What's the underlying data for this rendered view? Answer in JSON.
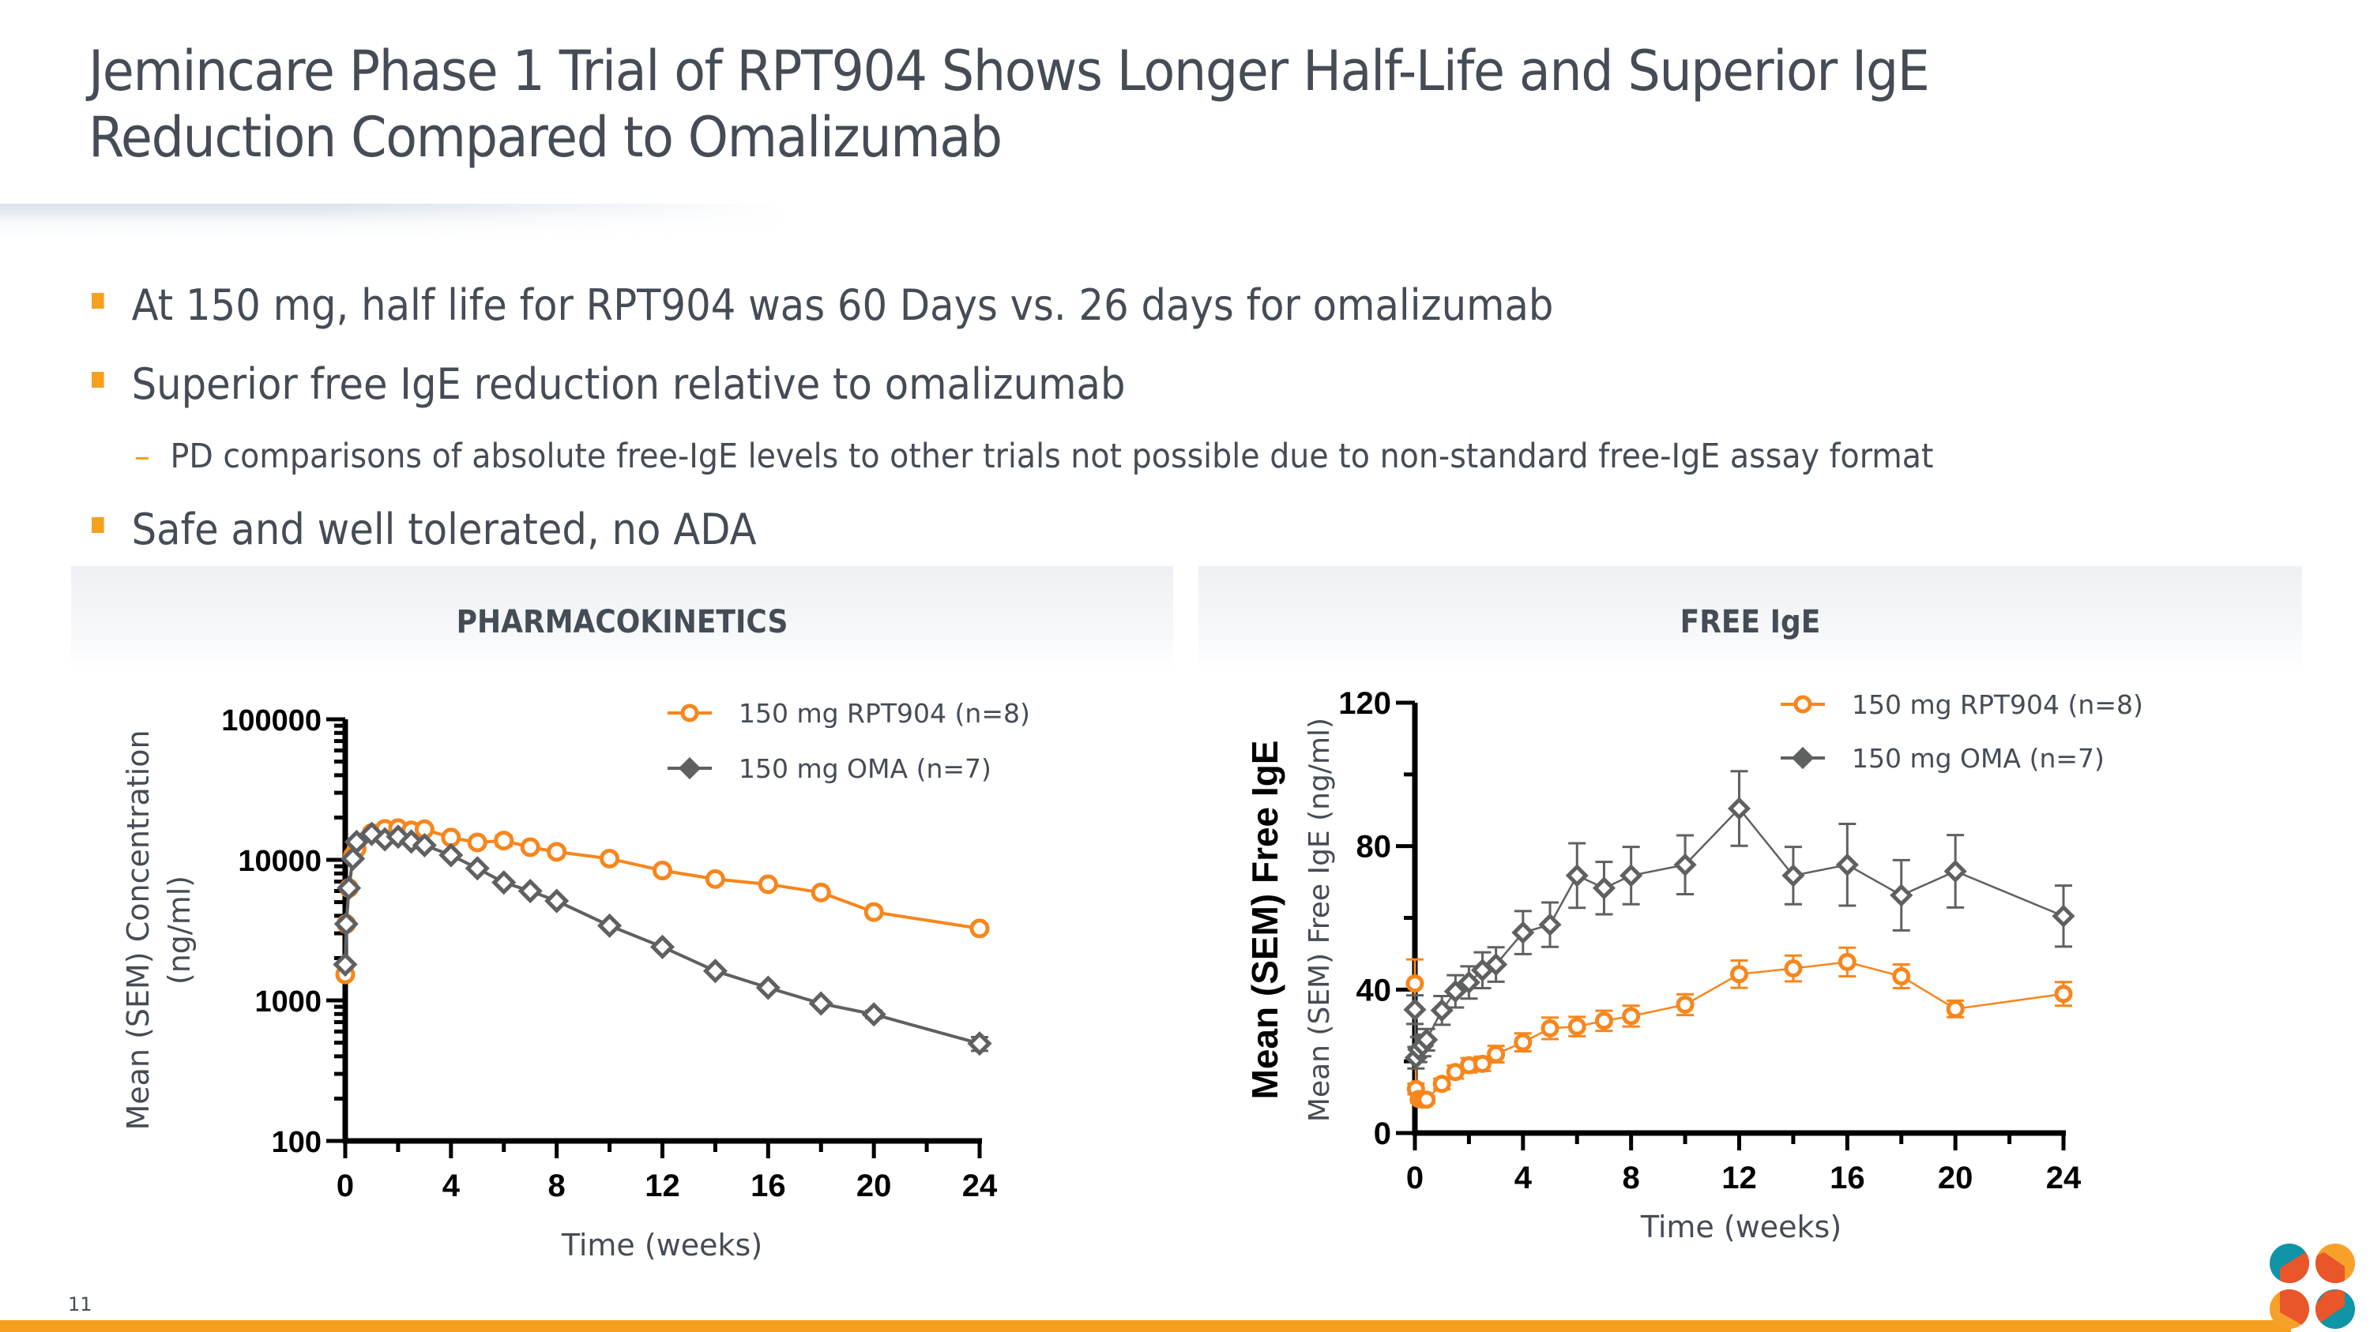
{
  "slide": {
    "title_line1": "Jemincare Phase 1 Trial of RPT904 Shows Longer Half-Life and Superior IgE",
    "title_line2": "Reduction Compared to Omalizumab",
    "page_number": "11",
    "colors": {
      "accent_orange": "#f5a01f",
      "series_rpt904": "#f7861c",
      "series_oma": "#5f6062",
      "text": "#454c55",
      "logo_teal": "#0f94a8",
      "logo_red": "#e8562a",
      "logo_orange": "#f7a02a"
    }
  },
  "bullets": [
    {
      "level": 1,
      "text": "At 150 mg, half life for RPT904 was 60 Days vs. 26 days for omalizumab"
    },
    {
      "level": 1,
      "text": "Superior free IgE reduction relative to omalizumab"
    },
    {
      "level": 2,
      "text": "PD comparisons of absolute free-IgE levels to other trials not possible due to non-standard free-IgE assay format"
    },
    {
      "level": 1,
      "text": "Safe and well tolerated, no ADA"
    }
  ],
  "panels": {
    "left_title": "PHARMACOKINETICS",
    "right_title": "FREE IgE"
  },
  "chart_data": [
    {
      "type": "line",
      "title": "PHARMACOKINETICS",
      "xlabel": "Time (weeks)",
      "ylabel": "Mean (SEM) Concentration (ng/ml)",
      "yscale": "log",
      "xlim": [
        0,
        24
      ],
      "ylim": [
        100,
        100000
      ],
      "xticks": [
        0,
        4,
        8,
        12,
        16,
        20,
        24
      ],
      "xtick_labels": [
        "0",
        "4",
        "8",
        "12",
        "16",
        "20",
        "24"
      ],
      "yticks": [
        100,
        1000,
        10000,
        100000
      ],
      "ytick_labels": [
        "100",
        "1000",
        "10000",
        "100000"
      ],
      "grid": false,
      "legend_position": "top-right",
      "series": [
        {
          "name": "150 mg RPT904 (n=8)",
          "marker": "circle-open",
          "color": "#f7861c",
          "x": [
            0,
            0.04,
            0.14,
            0.29,
            0.43,
            1,
            1.5,
            2,
            2.5,
            3,
            4,
            5,
            6,
            7,
            8,
            10,
            12,
            14,
            16,
            18,
            20,
            24
          ],
          "y": [
            1530,
            3500,
            6300,
            10700,
            12000,
            15500,
            16600,
            16800,
            16200,
            16500,
            14400,
            13300,
            13700,
            12300,
            11400,
            10200,
            8400,
            7300,
            6700,
            5860,
            4250,
            3250
          ],
          "sem": [
            0,
            0,
            0,
            0,
            0,
            0,
            0,
            0,
            0,
            0,
            0,
            0,
            1200,
            0,
            0,
            0,
            0,
            0,
            0,
            0,
            0,
            0
          ]
        },
        {
          "name": "150 mg OMA (n=7)",
          "marker": "diamond-open",
          "color": "#5f6062",
          "x": [
            0,
            0.04,
            0.14,
            0.29,
            0.43,
            1,
            1.5,
            2,
            2.5,
            3,
            4,
            5,
            6,
            7,
            8,
            10,
            12,
            14,
            16,
            18,
            20,
            24
          ],
          "y": [
            1800,
            3500,
            6300,
            10200,
            13400,
            15300,
            14000,
            14600,
            13500,
            12700,
            10800,
            8700,
            6900,
            6000,
            5100,
            3400,
            2400,
            1620,
            1230,
            950,
            795,
            493
          ],
          "sem": [
            0,
            0,
            0,
            0,
            0,
            0,
            0,
            0,
            0,
            0,
            0,
            0,
            0,
            0,
            0,
            0,
            0,
            0,
            0,
            0,
            50,
            55
          ]
        }
      ]
    },
    {
      "type": "line",
      "title": "FREE IgE",
      "xlabel": "Time (weeks)",
      "ylabel": "Mean (SEM) Free IgE (ng/ml)",
      "ylabel_overlay": "Mean  (SEM) Free IgE",
      "yscale": "linear",
      "xlim": [
        0,
        24
      ],
      "ylim": [
        0,
        120
      ],
      "xticks": [
        0,
        4,
        8,
        12,
        16,
        20,
        24
      ],
      "xtick_labels": [
        "0",
        "4",
        "8",
        "12",
        "16",
        "20",
        "24"
      ],
      "yticks": [
        0,
        40,
        80,
        120
      ],
      "ytick_labels": [
        "0",
        "40",
        "80",
        "120"
      ],
      "grid": false,
      "legend_position": "top-right",
      "series": [
        {
          "name": "150 mg RPT904 (n=8)",
          "marker": "circle-open",
          "color": "#f7861c",
          "x": [
            0,
            0.04,
            0.14,
            0.29,
            0.43,
            1,
            1.5,
            2,
            2.5,
            3,
            4,
            5,
            6,
            7,
            8,
            10,
            12,
            14,
            16,
            18,
            20,
            24
          ],
          "y": [
            41.7,
            12.3,
            9.5,
            9.3,
            9.3,
            13.7,
            17,
            18.9,
            19.3,
            22,
            25.3,
            29.2,
            29.7,
            31.3,
            32.6,
            35.8,
            44.3,
            45.9,
            47.7,
            43.7,
            34.6,
            38.8
          ],
          "sem": [
            6.7,
            1.5,
            1,
            1,
            1,
            1.5,
            1.8,
            2,
            2,
            2.3,
            2.5,
            3,
            2.7,
            2.8,
            2.9,
            2.9,
            3.8,
            3.6,
            4,
            3.3,
            2.3,
            3.3
          ]
        },
        {
          "name": "150 mg OMA (n=7)",
          "marker": "diamond-open",
          "color": "#5f6062",
          "x": [
            0,
            0.04,
            0.14,
            0.29,
            0.43,
            1,
            1.5,
            2,
            2.5,
            3,
            4,
            5,
            6,
            7,
            8,
            10,
            12,
            14,
            16,
            18,
            20,
            24
          ],
          "y": [
            34.4,
            21,
            23.3,
            24.4,
            26,
            34.2,
            39.5,
            42,
            45.4,
            47,
            55.9,
            58.1,
            71.8,
            68.3,
            71.8,
            74.8,
            90.5,
            71.8,
            74.8,
            66.3,
            73,
            60.5
          ],
          "sem": [
            4,
            3,
            3.5,
            3,
            3,
            4,
            4.5,
            4.5,
            5,
            4.8,
            6,
            6.2,
            9,
            7.3,
            8,
            8.2,
            10.4,
            8,
            11.4,
            9.8,
            10.1,
            8.5
          ]
        }
      ]
    }
  ]
}
